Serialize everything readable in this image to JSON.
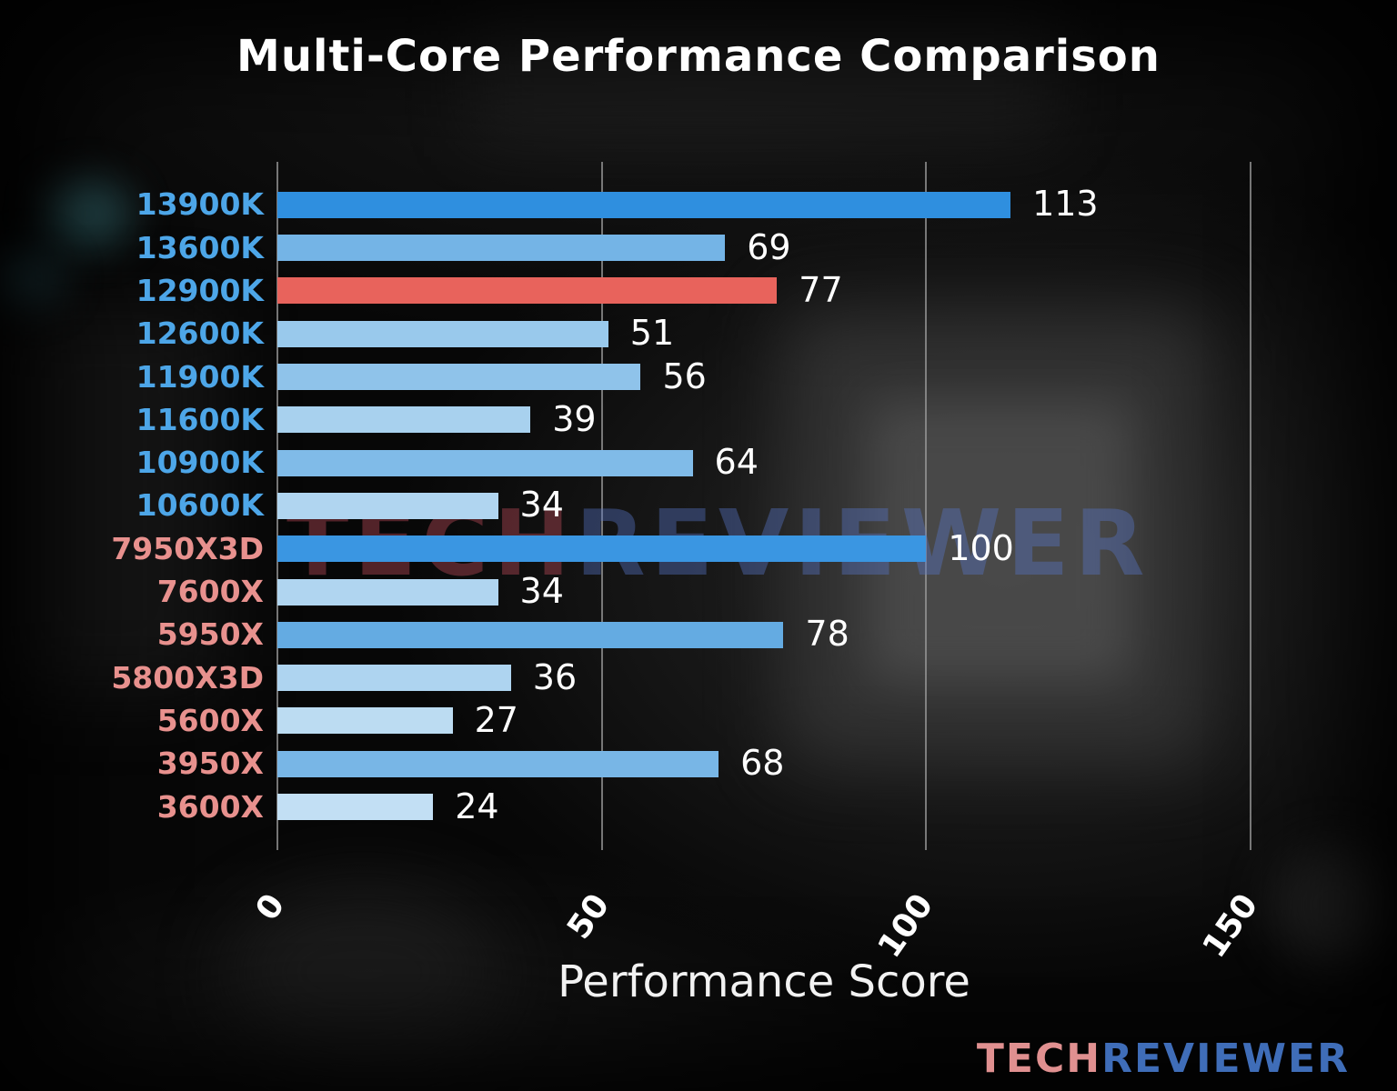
{
  "watermark": {
    "tech": "TECH",
    "reviewer": "REVIEWER"
  },
  "logo": {
    "tech": "TECH",
    "reviewer": "REVIEWER"
  },
  "colors": {
    "intel_label": "#4da6e8",
    "amd_label": "#e8918e",
    "highlight_bar": "#e8635c",
    "value_text": "#ffffff",
    "grid": "#9b9b9b"
  },
  "chart_data": {
    "type": "bar",
    "orientation": "horizontal",
    "title": "Multi-Core Performance Comparison",
    "xlabel": "Performance Score",
    "ylabel": "",
    "xlim": [
      0,
      150
    ],
    "grid": true,
    "legend": "none",
    "xticks": [
      {
        "label": "0",
        "value": 0
      },
      {
        "label": "50",
        "value": 50
      },
      {
        "label": "100",
        "value": 100
      },
      {
        "label": "150",
        "value": 150
      }
    ],
    "categories": [
      "13900K",
      "13600K",
      "12900K",
      "12600K",
      "11900K",
      "11600K",
      "10900K",
      "10600K",
      "7950X3D",
      "7600X",
      "5950X",
      "5800X3D",
      "5600X",
      "3950X",
      "3600X"
    ],
    "values": [
      113,
      69,
      77,
      51,
      56,
      39,
      64,
      34,
      100,
      34,
      78,
      36,
      27,
      68,
      24
    ],
    "bars": [
      {
        "label": "13900K",
        "value": 113,
        "brand": "intel",
        "bar_color": "#2f8fdf",
        "highlight": false
      },
      {
        "label": "13600K",
        "value": 69,
        "brand": "intel",
        "bar_color": "#74b4e6",
        "highlight": false
      },
      {
        "label": "12900K",
        "value": 77,
        "brand": "intel",
        "bar_color": "#e8635c",
        "highlight": true
      },
      {
        "label": "12600K",
        "value": 51,
        "brand": "intel",
        "bar_color": "#99c9ec",
        "highlight": false
      },
      {
        "label": "11900K",
        "value": 56,
        "brand": "intel",
        "bar_color": "#8fc3ea",
        "highlight": false
      },
      {
        "label": "11600K",
        "value": 39,
        "brand": "intel",
        "bar_color": "#a8d1ee",
        "highlight": false
      },
      {
        "label": "10900K",
        "value": 64,
        "brand": "intel",
        "bar_color": "#80bbe8",
        "highlight": false
      },
      {
        "label": "10600K",
        "value": 34,
        "brand": "intel",
        "bar_color": "#b0d5f0",
        "highlight": false
      },
      {
        "label": "7950X3D",
        "value": 100,
        "brand": "amd",
        "bar_color": "#3a96e2",
        "highlight": false
      },
      {
        "label": "7600X",
        "value": 34,
        "brand": "amd",
        "bar_color": "#b0d5f0",
        "highlight": false
      },
      {
        "label": "5950X",
        "value": 78,
        "brand": "amd",
        "bar_color": "#64abe2",
        "highlight": false
      },
      {
        "label": "5800X3D",
        "value": 36,
        "brand": "amd",
        "bar_color": "#aed4f0",
        "highlight": false
      },
      {
        "label": "5600X",
        "value": 27,
        "brand": "amd",
        "bar_color": "#bcdcf2",
        "highlight": false
      },
      {
        "label": "3950X",
        "value": 68,
        "brand": "amd",
        "bar_color": "#78b6e6",
        "highlight": false
      },
      {
        "label": "3600X",
        "value": 24,
        "brand": "amd",
        "bar_color": "#c2dff4",
        "highlight": false
      }
    ]
  }
}
